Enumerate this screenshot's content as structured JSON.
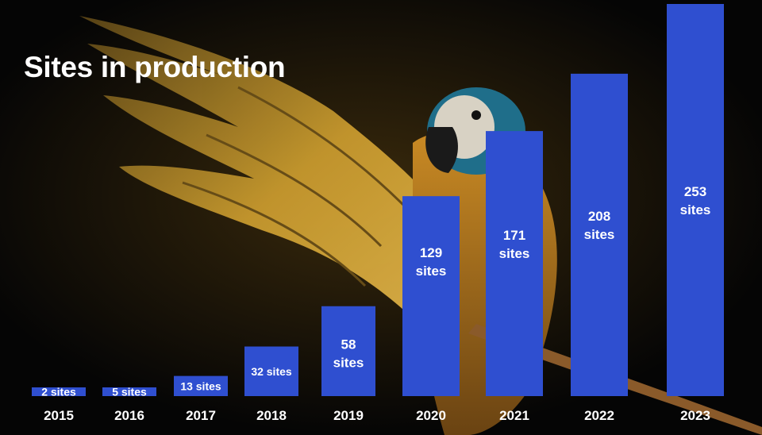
{
  "chart_data": {
    "type": "bar",
    "title": "Sites in production",
    "categories": [
      "2015",
      "2016",
      "2017",
      "2018",
      "2019",
      "2020",
      "2021",
      "2022",
      "2023"
    ],
    "values": [
      2,
      5,
      13,
      32,
      58,
      129,
      171,
      208,
      253
    ],
    "value_labels": [
      "2 sites",
      "5 sites",
      "13 sites",
      "32 sites",
      "58\nsites",
      "129\nsites",
      "171\nsites",
      "208\nsites",
      "253\nsites"
    ],
    "xlabel": "",
    "ylabel": "",
    "ylim": [
      0,
      253
    ],
    "grid": false,
    "legend": "none",
    "bar_color": "#2f4fd0",
    "label_color": "#ffffff"
  },
  "background": {
    "image_subject": "parrot-icon",
    "colors": {
      "base": "#050505",
      "feather_gold": "#c89a2e",
      "feather_dark": "#5a4416",
      "head_blue": "#1f6e8a",
      "branch": "#8a5a2a"
    }
  }
}
